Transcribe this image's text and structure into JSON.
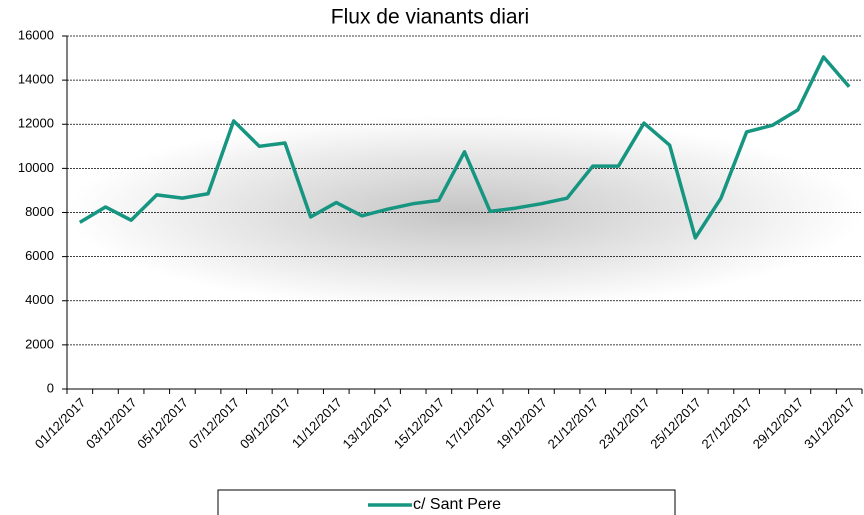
{
  "chart_data": {
    "type": "line",
    "title": "Flux de vianants diari",
    "categories": [
      "01/12/2017",
      null,
      "03/12/2017",
      null,
      "05/12/2017",
      null,
      "07/12/2017",
      null,
      "09/12/2017",
      null,
      "11/12/2017",
      null,
      "13/12/2017",
      null,
      "15/12/2017",
      null,
      "17/12/2017",
      null,
      "19/12/2017",
      null,
      "21/12/2017",
      null,
      "23/12/2017",
      null,
      "25/12/2017",
      null,
      "27/12/2017",
      null,
      "29/12/2017",
      null,
      "31/12/2017"
    ],
    "series": [
      {
        "name": "c/ Sant Pere",
        "color": "#169580",
        "values": [
          7550,
          8250,
          7650,
          8800,
          8650,
          8850,
          12150,
          11000,
          11150,
          7800,
          8450,
          7850,
          8150,
          8400,
          8550,
          10750,
          8050,
          8200,
          8400,
          8650,
          10100,
          10100,
          12050,
          11050,
          6850,
          8650,
          11650,
          11950,
          12650,
          15050,
          13700
        ]
      }
    ],
    "ylim": [
      0,
      16000
    ],
    "yticks": [
      0,
      2000,
      4000,
      6000,
      8000,
      10000,
      12000,
      14000,
      16000
    ],
    "grid": true
  }
}
